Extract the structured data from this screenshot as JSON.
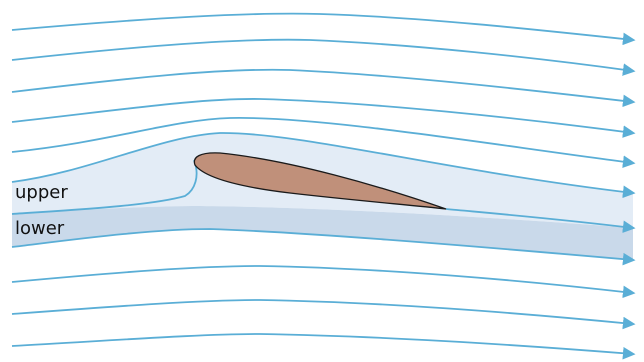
{
  "labels": {
    "upper": "upper",
    "lower": "lower"
  },
  "colors": {
    "background": "#ffffff",
    "streamline": "#5aaed6",
    "upper_region_fill": "#e3ecf6",
    "lower_region_fill": "#c9d9ea",
    "airfoil_fill": "#c0907a",
    "airfoil_outline": "#1a1a1a",
    "text": "#111111"
  },
  "streamlines_above_airfoil": 5,
  "streamlines_below_airfoil": 3
}
